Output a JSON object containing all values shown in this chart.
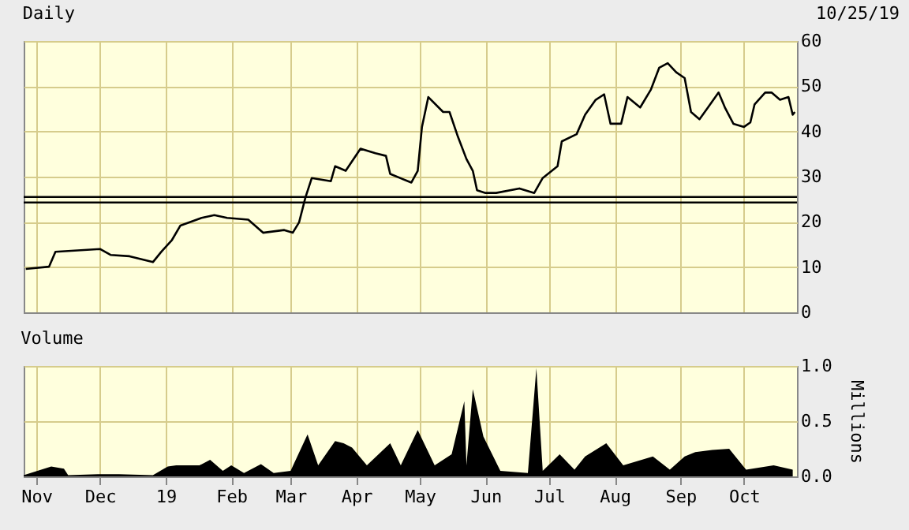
{
  "chart_data": [
    {
      "type": "line",
      "title": "Daily",
      "annotations": [
        "10/25/19"
      ],
      "x": [
        "2018-10-27",
        "2018-11-07",
        "2018-11-10",
        "2018-12-01",
        "2018-12-06",
        "2018-12-15",
        "2018-12-26",
        "2018-12-30",
        "2019-01-04",
        "2019-01-08",
        "2019-01-18",
        "2019-01-24",
        "2019-01-30",
        "2019-02-09",
        "2019-02-16",
        "2019-02-26",
        "2019-03-02",
        "2019-03-05",
        "2019-03-08",
        "2019-03-11",
        "2019-03-20",
        "2019-03-22",
        "2019-03-27",
        "2019-04-03",
        "2019-04-10",
        "2019-04-15",
        "2019-04-17",
        "2019-04-27",
        "2019-04-30",
        "2019-05-02",
        "2019-05-05",
        "2019-05-12",
        "2019-05-15",
        "2019-05-19",
        "2019-05-23",
        "2019-05-26",
        "2019-05-28",
        "2019-06-01",
        "2019-06-06",
        "2019-06-17",
        "2019-06-24",
        "2019-06-28",
        "2019-07-05",
        "2019-07-07",
        "2019-07-14",
        "2019-07-18",
        "2019-07-23",
        "2019-07-27",
        "2019-07-30",
        "2019-08-04",
        "2019-08-07",
        "2019-08-13",
        "2019-08-18",
        "2019-08-22",
        "2019-08-26",
        "2019-08-30",
        "2019-09-03",
        "2019-09-06",
        "2019-09-10",
        "2019-09-14",
        "2019-09-19",
        "2019-09-22",
        "2019-09-26",
        "2019-10-01",
        "2019-10-04",
        "2019-10-06",
        "2019-10-11",
        "2019-10-14",
        "2019-10-18",
        "2019-10-22",
        "2019-10-24",
        "2019-10-25"
      ],
      "series": [
        {
          "color": "#000000",
          "values": [
            9.6,
            10.1,
            13.4,
            14.0,
            12.7,
            12.4,
            11.1,
            13.4,
            16,
            19.2,
            20.9,
            21.5,
            20.9,
            20.5,
            17.6,
            18.2,
            17.6,
            19.9,
            25.4,
            29.7,
            29,
            32.3,
            31.3,
            36.2,
            35.2,
            34.6,
            30.6,
            28.7,
            31.3,
            41,
            47.6,
            44.3,
            44.3,
            38.8,
            33.9,
            31.3,
            27,
            26.4,
            26.4,
            27.4,
            26.4,
            29.7,
            32.3,
            37.8,
            39.4,
            43.7,
            47,
            48.2,
            41.7,
            41.7,
            47.6,
            45.3,
            49.2,
            54.1,
            55.1,
            53.1,
            51.8,
            44.3,
            42.7,
            45.3,
            48.6,
            45.3,
            41.7,
            41,
            42,
            46,
            48.6,
            48.6,
            47,
            47.6,
            43.7,
            44.3
          ]
        }
      ],
      "xlim": [
        "2018-10-26",
        "2019-10-26"
      ],
      "xticks": [
        {
          "value": "2018-11-01",
          "label": null
        },
        {
          "value": "2018-12-01",
          "label": null
        },
        {
          "value": "2019-01-01",
          "label": null
        },
        {
          "value": "2019-02-01",
          "label": null
        },
        {
          "value": "2019-03-01",
          "label": null
        },
        {
          "value": "2019-04-01",
          "label": null
        },
        {
          "value": "2019-05-01",
          "label": null
        },
        {
          "value": "2019-06-01",
          "label": null
        },
        {
          "value": "2019-07-01",
          "label": null
        },
        {
          "value": "2019-08-01",
          "label": null
        },
        {
          "value": "2019-09-01",
          "label": null
        },
        {
          "value": "2019-10-01",
          "label": null
        }
      ],
      "ylim": [
        0,
        60
      ],
      "yticks": [
        0,
        10,
        20,
        30,
        40,
        50,
        60
      ],
      "grid": true,
      "tick_labels": "y",
      "line_style": "solid",
      "ref_lines": [
        {
          "axis": "y",
          "value": 25.5,
          "color": "#000000"
        },
        {
          "axis": "y",
          "value": 24.3,
          "color": "#000000"
        }
      ]
    },
    {
      "type": "area",
      "title": "Volume",
      "ylabel": "Millions",
      "x": [
        "2018-10-26",
        "2018-11-08",
        "2018-11-14",
        "2018-11-16",
        "2018-11-30",
        "2018-12-10",
        "2018-12-26",
        "2019-01-02",
        "2019-01-06",
        "2019-01-17",
        "2019-01-22",
        "2019-01-28",
        "2019-02-01",
        "2019-02-07",
        "2019-02-15",
        "2019-02-21",
        "2019-03-01",
        "2019-03-09",
        "2019-03-14",
        "2019-03-22",
        "2019-03-26",
        "2019-03-30",
        "2019-04-06",
        "2019-04-17",
        "2019-04-22",
        "2019-04-30",
        "2019-05-08",
        "2019-05-16",
        "2019-05-22",
        "2019-05-23",
        "2019-05-26",
        "2019-05-31",
        "2019-06-08",
        "2019-06-21",
        "2019-06-25",
        "2019-06-28",
        "2019-07-06",
        "2019-07-13",
        "2019-07-18",
        "2019-07-28",
        "2019-08-05",
        "2019-08-19",
        "2019-08-27",
        "2019-09-03",
        "2019-09-08",
        "2019-09-16",
        "2019-09-24",
        "2019-10-02",
        "2019-10-15",
        "2019-10-24"
      ],
      "series": [
        {
          "color": "#000000",
          "values": [
            0.01,
            0.09,
            0.07,
            0.01,
            0.02,
            0.02,
            0.01,
            0.09,
            0.1,
            0.1,
            0.15,
            0.05,
            0.1,
            0.03,
            0.11,
            0.03,
            0.05,
            0.38,
            0.1,
            0.32,
            0.3,
            0.26,
            0.1,
            0.3,
            0.1,
            0.42,
            0.1,
            0.2,
            0.68,
            0.1,
            0.79,
            0.36,
            0.05,
            0.03,
            0.98,
            0.05,
            0.2,
            0.06,
            0.18,
            0.3,
            0.1,
            0.18,
            0.06,
            0.18,
            0.22,
            0.24,
            0.25,
            0.06,
            0.1,
            0.06
          ]
        }
      ],
      "xlim": [
        "2018-10-26",
        "2019-10-26"
      ],
      "xticks": [
        {
          "value": "2018-11-01",
          "label": "Nov"
        },
        {
          "value": "2018-12-01",
          "label": "Dec"
        },
        {
          "value": "2019-01-01",
          "label": "19"
        },
        {
          "value": "2019-02-01",
          "label": "Feb"
        },
        {
          "value": "2019-03-01",
          "label": "Mar"
        },
        {
          "value": "2019-04-01",
          "label": "Apr"
        },
        {
          "value": "2019-05-01",
          "label": "May"
        },
        {
          "value": "2019-06-01",
          "label": "Jun"
        },
        {
          "value": "2019-07-01",
          "label": "Jul"
        },
        {
          "value": "2019-08-01",
          "label": "Aug"
        },
        {
          "value": "2019-09-01",
          "label": "Sep"
        },
        {
          "value": "2019-10-01",
          "label": "Oct"
        }
      ],
      "ylim": [
        0,
        1
      ],
      "yticks": [
        {
          "value": 0,
          "label": "0.0"
        },
        {
          "value": 0.5,
          "label": "0.5"
        },
        {
          "value": 1,
          "label": "1.0"
        }
      ],
      "grid": true
    }
  ]
}
